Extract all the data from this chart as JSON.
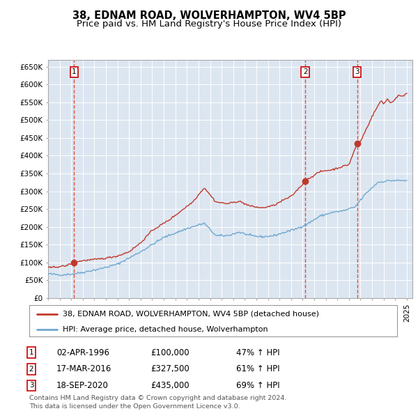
{
  "title": "38, EDNAM ROAD, WOLVERHAMPTON, WV4 5BP",
  "subtitle": "Price paid vs. HM Land Registry's House Price Index (HPI)",
  "ylim": [
    0,
    670000
  ],
  "yticks": [
    0,
    50000,
    100000,
    150000,
    200000,
    250000,
    300000,
    350000,
    400000,
    450000,
    500000,
    550000,
    600000,
    650000
  ],
  "ytick_labels": [
    "£0",
    "£50K",
    "£100K",
    "£150K",
    "£200K",
    "£250K",
    "£300K",
    "£350K",
    "£400K",
    "£450K",
    "£500K",
    "£550K",
    "£600K",
    "£650K"
  ],
  "bg_color": "#dce6f1",
  "hpi_color": "#6fa8d0",
  "price_color": "#c0392b",
  "vline_color": "#e74c3c",
  "sale_date_floats": [
    1996.25,
    2016.22,
    2020.72
  ],
  "sale_prices": [
    100000,
    327500,
    435000
  ],
  "sale_labels": [
    "1",
    "2",
    "3"
  ],
  "sale_info": [
    {
      "label": "1",
      "date": "02-APR-1996",
      "price": "£100,000",
      "hpi": "47% ↑ HPI"
    },
    {
      "label": "2",
      "date": "17-MAR-2016",
      "price": "£327,500",
      "hpi": "61% ↑ HPI"
    },
    {
      "label": "3",
      "date": "18-SEP-2020",
      "price": "£435,000",
      "hpi": "69% ↑ HPI"
    }
  ],
  "legend_line1": "38, EDNAM ROAD, WOLVERHAMPTON, WV4 5BP (detached house)",
  "legend_line2": "HPI: Average price, detached house, Wolverhampton",
  "footer": "Contains HM Land Registry data © Crown copyright and database right 2024.\nThis data is licensed under the Open Government Licence v3.0.",
  "title_fontsize": 10.5,
  "subtitle_fontsize": 9.5,
  "tick_fontsize": 7.5
}
